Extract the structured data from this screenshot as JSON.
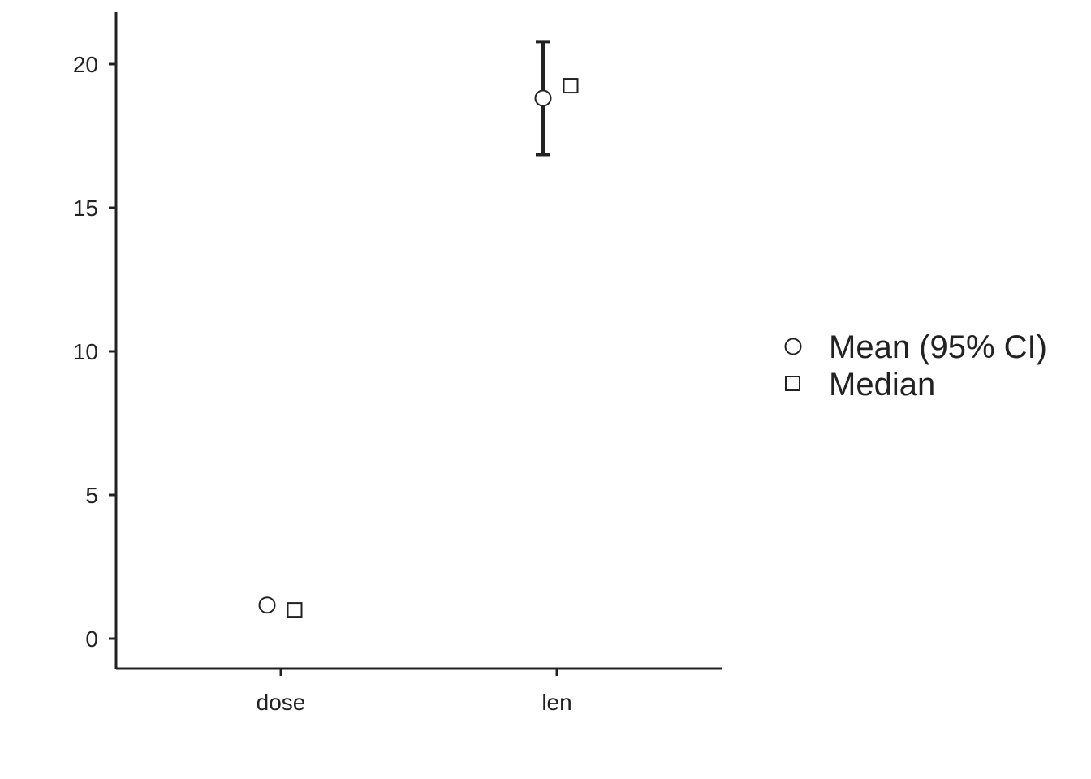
{
  "chart_data": {
    "type": "scatter",
    "title": "",
    "xlabel": "",
    "ylabel": "",
    "categories": [
      "dose",
      "len"
    ],
    "ylim": [
      -1,
      21.8
    ],
    "yticks": [
      0,
      5,
      10,
      15,
      20
    ],
    "grid": false,
    "legend_position": "right",
    "series": [
      {
        "name": "Mean (95% CI)",
        "marker": "circle",
        "values": [
          1.1667,
          18.8133
        ],
        "ci_low": [
          null,
          16.85
        ],
        "ci_high": [
          null,
          20.78
        ]
      },
      {
        "name": "Median",
        "marker": "square",
        "values": [
          1.0,
          19.25
        ]
      }
    ],
    "colors": {
      "axis": "#222222",
      "marker_stroke": "#222222",
      "marker_fill": "#ffffff"
    }
  }
}
